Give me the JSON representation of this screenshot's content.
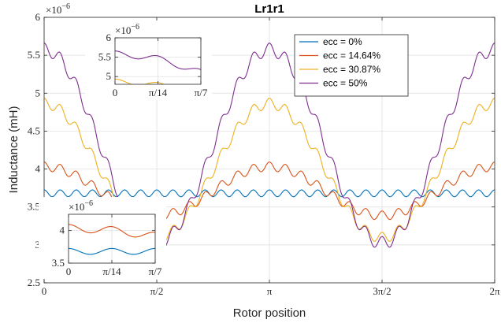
{
  "chart_data": {
    "type": "line",
    "title": "Lr1r1",
    "xlabel": "Rotor position",
    "ylabel": "Inductance (mH)",
    "y_exponent_label": "×10",
    "y_exponent_power": "−6",
    "xlim": [
      0,
      6.2832
    ],
    "ylim": [
      2.5,
      6.0
    ],
    "x_ticks": [
      {
        "value": 0,
        "label": "0"
      },
      {
        "value": 1.5708,
        "label": "π/2"
      },
      {
        "value": 3.1416,
        "label": "π"
      },
      {
        "value": 4.7124,
        "label": "3π/2"
      },
      {
        "value": 6.2832,
        "label": "2π"
      }
    ],
    "y_ticks": [
      {
        "value": 2.5,
        "label": "2.5"
      },
      {
        "value": 3,
        "label": "3"
      },
      {
        "value": 3.5,
        "label": "3.5"
      },
      {
        "value": 4,
        "label": "4"
      },
      {
        "value": 4.5,
        "label": "4.5"
      },
      {
        "value": 5,
        "label": "5"
      },
      {
        "value": 5.5,
        "label": "5.5"
      },
      {
        "value": 6,
        "label": "6"
      }
    ],
    "grid": true,
    "legend_position": "top-right",
    "slot_harmonic": 28,
    "series": [
      {
        "name": "ecc = 0%",
        "color": "#0072BD",
        "mean": 3.68,
        "envelope_amplitude": 0.0,
        "ripple_amplitude": 0.045
      },
      {
        "name": "ecc = 14.64%",
        "color": "#D95319",
        "mean": 3.71,
        "envelope_amplitude": 0.38,
        "ripple_amplitude": 0.06
      },
      {
        "name": "ecc = 30.87%",
        "color": "#EDB120",
        "mean": 3.98,
        "envelope_amplitude": 1.04,
        "ripple_amplitude": 0.07
      },
      {
        "name": "ecc = 50%",
        "color": "#7E2F8E",
        "mean": 4.3,
        "envelope_amplitude": 1.5,
        "ripple_amplitude": 0.085
      }
    ],
    "insets": [
      {
        "position": "top-left",
        "xlim": [
          0,
          0.4488
        ],
        "ylim": [
          4.8,
          6.0
        ],
        "exponent_label": "×10",
        "exponent_power": "−6",
        "x_ticks": [
          {
            "value": 0,
            "label": "0"
          },
          {
            "value": 0.2244,
            "label": "π/14"
          },
          {
            "value": 0.4488,
            "label": "π/7"
          }
        ],
        "y_ticks": [
          {
            "value": 5,
            "label": "5"
          },
          {
            "value": 5.5,
            "label": "5.5"
          },
          {
            "value": 6,
            "label": "6"
          }
        ],
        "series_indices": [
          2,
          3
        ]
      },
      {
        "position": "bottom-left",
        "xlim": [
          0,
          0.4488
        ],
        "ylim": [
          3.5,
          4.25
        ],
        "exponent_label": "×10",
        "exponent_power": "−6",
        "x_ticks": [
          {
            "value": 0,
            "label": "0"
          },
          {
            "value": 0.2244,
            "label": "π/14"
          },
          {
            "value": 0.4488,
            "label": "π/7"
          }
        ],
        "y_ticks": [
          {
            "value": 3.5,
            "label": "3.5"
          },
          {
            "value": 4,
            "label": "4"
          }
        ],
        "series_indices": [
          0,
          1
        ]
      }
    ]
  }
}
